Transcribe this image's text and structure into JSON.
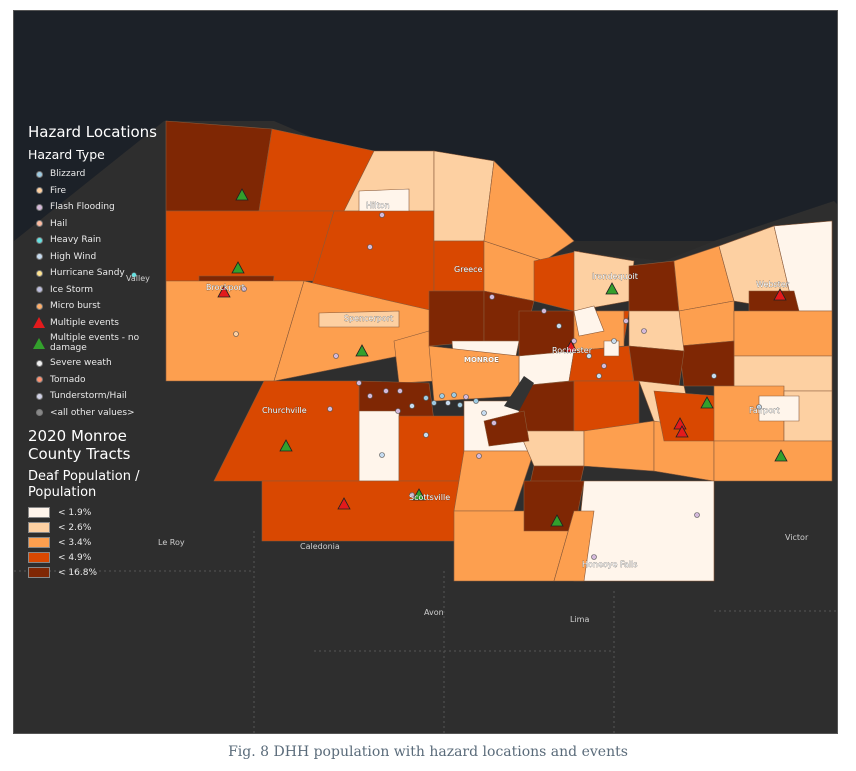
{
  "legend": {
    "hazard_title": "Hazard Locations",
    "hazard_type_label": "Hazard Type",
    "hazard_types": [
      {
        "label": "Blizzard",
        "color": "#9ecae1",
        "symbol": "dot"
      },
      {
        "label": "Fire",
        "color": "#fdd0a2",
        "symbol": "dot"
      },
      {
        "label": "Flash Flooding",
        "color": "#d4b9da",
        "symbol": "dot"
      },
      {
        "label": "Hail",
        "color": "#fcbba1",
        "symbol": "dot"
      },
      {
        "label": "Heavy Rain",
        "color": "#66e0e0",
        "symbol": "dot"
      },
      {
        "label": "High Wind",
        "color": "#c6dbef",
        "symbol": "dot"
      },
      {
        "label": "Hurricane Sandy",
        "color": "#fee391",
        "symbol": "dot"
      },
      {
        "label": "Ice Storm",
        "color": "#bcbddc",
        "symbol": "dot"
      },
      {
        "label": "Micro burst",
        "color": "#fdae6b",
        "symbol": "dot"
      },
      {
        "label": "Multiple events",
        "color": "#e31a1c",
        "symbol": "triangle"
      },
      {
        "label": "Multiple events - no damage",
        "color": "#33a02c",
        "symbol": "triangle"
      },
      {
        "label": "Severe weath",
        "color": "#f0f0f0",
        "symbol": "dot"
      },
      {
        "label": "Tornado",
        "color": "#fc9272",
        "symbol": "dot"
      },
      {
        "label": "Tunderstorm/Hail",
        "color": "#d0d1e6",
        "symbol": "dot"
      },
      {
        "label": "<all other values>",
        "color": "#888888",
        "symbol": "dot"
      }
    ],
    "tracts_title": "2020 Monroe County Tracts",
    "pop_title": "Deaf Population / Population",
    "classes": [
      {
        "label": "< 1.9%",
        "color": "#fff5eb"
      },
      {
        "label": "< 2.6%",
        "color": "#fdd0a2"
      },
      {
        "label": "< 3.4%",
        "color": "#fd9f4f"
      },
      {
        "label": "< 4.9%",
        "color": "#d94801"
      },
      {
        "label": "< 16.8%",
        "color": "#7f2704"
      }
    ]
  },
  "places": {
    "hilton": "Hilton",
    "greece": "Greece",
    "irondequoit": "Irondequoit",
    "webster": "Webster",
    "brockport": "Brockport",
    "spencerport": "Spencerport",
    "monroe": "MONROE",
    "rochester": "Rochester",
    "churchville": "Churchville",
    "fairport": "Fairport",
    "scottsville": "Scottsville",
    "honeoye_falls": "Honeoye Falls",
    "valley": "Valley",
    "le_roy": "Le Roy",
    "caledonia": "Caledonia",
    "victor": "Victor",
    "avon": "Avon",
    "lima": "Lima"
  },
  "caption": "Fig. 8 DHH population with hazard locations and events"
}
